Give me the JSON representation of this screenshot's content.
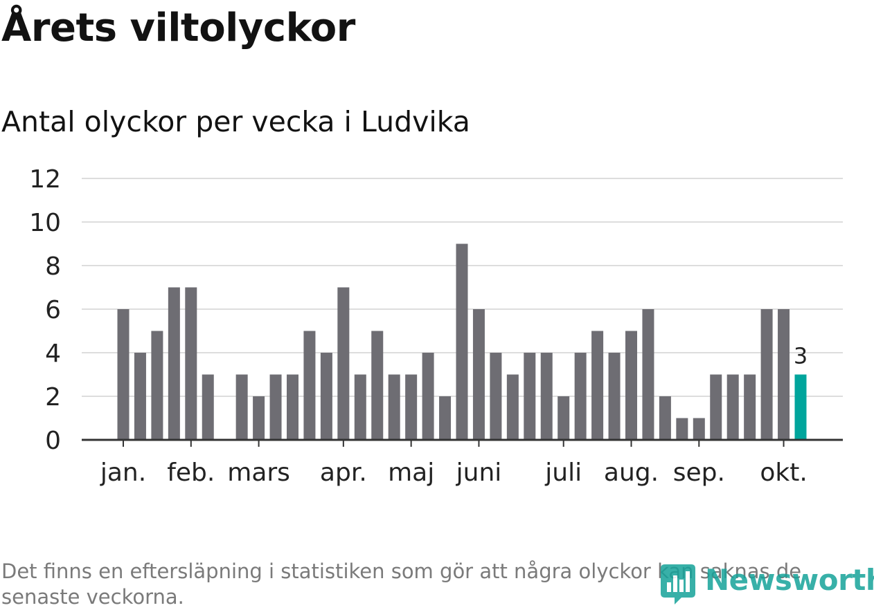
{
  "header": {
    "title": "Årets viltolyckor",
    "subtitle": "Antal olyckor per vecka i Ludvika"
  },
  "footer": {
    "note": "Det finns en eftersläpning i statistiken som gör att några olyckor kan saknas de senaste veckorna.",
    "brand": "Newsworthy"
  },
  "colors": {
    "bar": "#6e6d73",
    "highlight": "#00a59c",
    "grid": "#dddddd",
    "axis": "#333333",
    "text": "#222222"
  },
  "chart_data": {
    "type": "bar",
    "title": "Antal olyckor per vecka i Ludvika",
    "xlabel": "",
    "ylabel": "",
    "ylim": [
      0,
      12
    ],
    "yticks": [
      "0",
      "2",
      "4",
      "6",
      "8",
      "10",
      "12"
    ],
    "grid": true,
    "weeks": [
      1,
      2,
      3,
      4,
      5,
      6,
      7,
      8,
      9,
      10,
      11,
      12,
      13,
      14,
      15,
      16,
      17,
      18,
      19,
      20,
      21,
      22,
      23,
      24,
      25,
      26,
      27,
      28,
      29,
      30,
      31,
      32,
      33,
      34,
      35,
      36,
      37,
      38,
      39,
      40,
      41
    ],
    "values": [
      6,
      4,
      5,
      7,
      7,
      3,
      0,
      3,
      2,
      3,
      3,
      5,
      4,
      7,
      3,
      5,
      3,
      3,
      4,
      2,
      9,
      6,
      4,
      3,
      4,
      4,
      2,
      4,
      5,
      4,
      5,
      6,
      2,
      1,
      1,
      3,
      3,
      3,
      6,
      6,
      3
    ],
    "highlight_index": 40,
    "highlight_label": "3",
    "month_labels": [
      {
        "label": "jan.",
        "week": 1
      },
      {
        "label": "feb.",
        "week": 5
      },
      {
        "label": "mars",
        "week": 9
      },
      {
        "label": "apr.",
        "week": 14
      },
      {
        "label": "maj",
        "week": 18
      },
      {
        "label": "juni",
        "week": 22
      },
      {
        "label": "juli",
        "week": 27
      },
      {
        "label": "aug.",
        "week": 31
      },
      {
        "label": "sep.",
        "week": 35
      },
      {
        "label": "okt.",
        "week": 40
      }
    ]
  }
}
